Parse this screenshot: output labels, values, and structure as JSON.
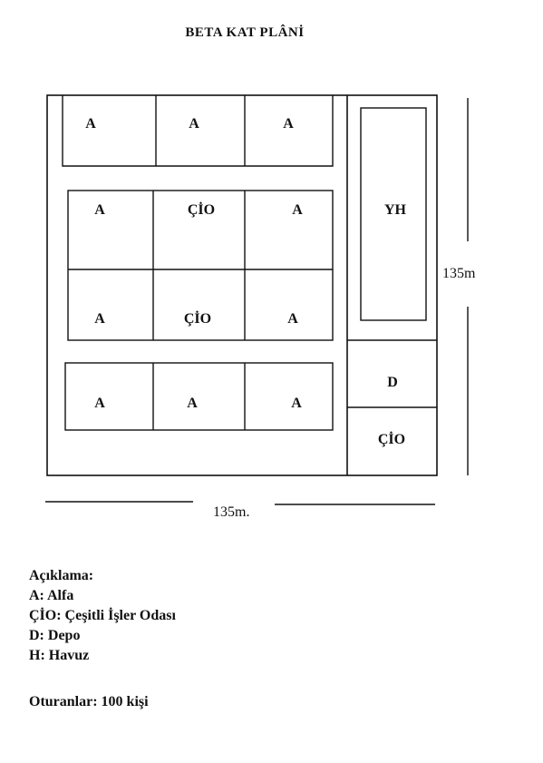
{
  "title": "BETA KAT PLÂNİ",
  "rooms": {
    "row1": [
      "A",
      "A",
      "A"
    ],
    "row2": [
      "A",
      "ÇİO",
      "A"
    ],
    "row3": [
      "A",
      "ÇİO",
      "A"
    ],
    "row4": [
      "A",
      "A",
      "A"
    ],
    "pool": "YH",
    "storage": "D",
    "misc": "ÇİO"
  },
  "dimensions": {
    "height": "135m",
    "width": "135m."
  },
  "legend": {
    "heading": "Açıklama:",
    "items": [
      "A: Alfa",
      "ÇİO: Çeşitli İşler Odası",
      "D: Depo",
      "H: Havuz"
    ]
  },
  "occupants": "Oturanlar: 100 kişi"
}
